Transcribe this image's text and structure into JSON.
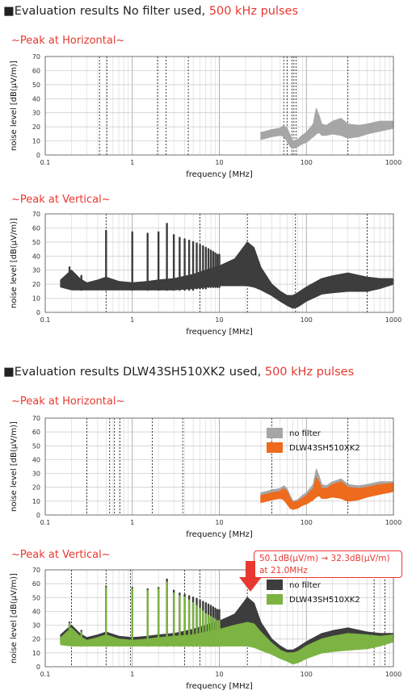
{
  "section1": {
    "prefix": "■Evaluation results   No filter used, ",
    "highlight": "500 kHz pulses"
  },
  "section2": {
    "prefix": "■Evaluation results   DLW43SH510XK2 used, ",
    "highlight": "500 kHz pulses"
  },
  "subtitles": {
    "c1": "~Peak at Horizontal~",
    "c2": "~Peak at Vertical~",
    "c3": "~Peak at Horizontal~",
    "c4": "~Peak at Vertical~"
  },
  "annotation": {
    "line1": "50.1dB(μV/m) → 32.3dB(μV/m)",
    "line2": "at 21.0MHz"
  },
  "colors": {
    "nofilter_gray": "#a6a6a6",
    "nofilter_dark": "#3d3d3d",
    "filter_orange": "#ee6a1c",
    "filter_green": "#7cb342",
    "accent_red": "#e8382f"
  },
  "chart_data": [
    {
      "id": "c1",
      "type": "line",
      "xscale": "log",
      "xlim": [
        0.1,
        1000
      ],
      "ylim": [
        0,
        70
      ],
      "xticks": [
        "0.1",
        "1",
        "10",
        "100",
        "1000"
      ],
      "yticks": [
        0,
        10,
        20,
        30,
        40,
        50,
        60,
        70
      ],
      "xlabel": "frequency [MHz]",
      "ylabel": "noise level [dB(μV/m)]",
      "marker_lines": [
        0.42,
        0.51,
        1.95,
        2.45,
        4.4,
        55,
        60,
        68,
        72,
        76,
        300
      ],
      "series": [
        {
          "color": "#a6a6a6",
          "band": true,
          "x": [
            30,
            35,
            40,
            50,
            55,
            60,
            65,
            70,
            80,
            90,
            100,
            120,
            130,
            140,
            150,
            170,
            200,
            250,
            300,
            400,
            500,
            700,
            1000
          ],
          "lo": [
            11,
            12,
            13,
            14,
            13,
            10,
            6,
            5,
            6,
            8,
            9,
            13,
            15,
            16,
            14,
            14,
            15,
            14,
            12,
            13,
            15,
            17,
            19
          ],
          "hi": [
            16,
            17,
            18,
            19,
            21,
            19,
            14,
            10,
            11,
            14,
            16,
            22,
            33,
            28,
            22,
            21,
            24,
            26,
            22,
            21,
            22,
            24,
            24
          ]
        }
      ]
    },
    {
      "id": "c2",
      "type": "line",
      "xscale": "log",
      "xlim": [
        0.1,
        1000
      ],
      "ylim": [
        0,
        70
      ],
      "xticks": [
        "0.1",
        "1",
        "10",
        "100",
        "1000"
      ],
      "yticks": [
        0,
        10,
        20,
        30,
        40,
        50,
        60,
        70
      ],
      "xlabel": "frequency [MHz]",
      "ylabel": "noise level [dB(μV/m)]",
      "marker_lines": [
        0.5,
        6,
        21,
        75,
        500
      ],
      "series": [
        {
          "color": "#3d3d3d",
          "band": true,
          "x": [
            0.15,
            0.2,
            0.25,
            0.3,
            0.4,
            0.5,
            0.7,
            1,
            1.5,
            2,
            3,
            5,
            7,
            10,
            15,
            21,
            25,
            30,
            40,
            50,
            60,
            70,
            80,
            100,
            150,
            200,
            300,
            500,
            700,
            1000
          ],
          "lo": [
            18,
            16,
            16,
            16,
            16,
            16,
            16,
            16,
            16,
            16,
            16,
            17,
            18,
            19,
            19,
            19,
            18,
            16,
            12,
            8,
            5,
            3,
            4,
            8,
            13,
            14,
            15,
            15,
            17,
            20
          ],
          "hi": [
            23,
            30,
            24,
            21,
            23,
            25,
            22,
            21,
            22,
            23,
            24,
            27,
            30,
            33,
            38,
            50,
            46,
            32,
            20,
            15,
            12,
            12,
            14,
            18,
            24,
            26,
            28,
            25,
            24,
            24
          ],
          "spikes_x": [
            0.19,
            0.26,
            0.5,
            1.0,
            1.5,
            2.0,
            2.5,
            3.0,
            3.5,
            4.0,
            4.5,
            5.0,
            5.5,
            6.0,
            6.5,
            7.0,
            7.5,
            8.0,
            8.5,
            9.0,
            9.5,
            10.0
          ],
          "spikes_y": [
            32,
            26,
            58,
            57,
            56,
            57,
            63,
            55,
            53,
            52,
            51,
            50,
            49,
            48,
            47,
            46,
            45,
            44,
            43,
            42,
            41,
            41
          ]
        }
      ]
    },
    {
      "id": "c3",
      "type": "line",
      "xscale": "log",
      "xlim": [
        0.1,
        1000
      ],
      "ylim": [
        0,
        70
      ],
      "xticks": [
        "0.1",
        "1",
        "10",
        "100",
        "1000"
      ],
      "yticks": [
        0,
        10,
        20,
        30,
        40,
        50,
        60,
        70
      ],
      "xlabel": "frequency [MHz]",
      "ylabel": "noise level [dB(μV/m)]",
      "marker_lines": [
        0.3,
        0.55,
        0.62,
        0.72,
        1.7,
        3.8,
        40,
        300
      ],
      "legend": [
        "no filter",
        "DLW43SH510XK2"
      ],
      "series": [
        {
          "name": "no filter",
          "color": "#a6a6a6",
          "band": true,
          "x": [
            30,
            35,
            40,
            50,
            55,
            60,
            65,
            70,
            80,
            90,
            100,
            120,
            130,
            140,
            150,
            170,
            200,
            250,
            300,
            400,
            500,
            700,
            1000
          ],
          "lo": [
            11,
            12,
            13,
            14,
            13,
            10,
            6,
            5,
            6,
            8,
            9,
            13,
            15,
            16,
            14,
            14,
            15,
            14,
            12,
            13,
            15,
            17,
            19
          ],
          "hi": [
            16,
            17,
            18,
            19,
            21,
            19,
            14,
            10,
            11,
            14,
            16,
            22,
            33,
            28,
            22,
            21,
            24,
            26,
            22,
            21,
            22,
            24,
            24
          ]
        },
        {
          "name": "DLW43SH510XK2",
          "color": "#ee6a1c",
          "band": true,
          "x": [
            30,
            35,
            40,
            50,
            55,
            60,
            65,
            70,
            80,
            90,
            100,
            120,
            130,
            140,
            150,
            170,
            200,
            250,
            300,
            400,
            500,
            700,
            1000
          ],
          "lo": [
            9,
            10,
            11,
            12,
            11,
            8,
            5,
            4,
            5,
            7,
            8,
            11,
            13,
            14,
            12,
            12,
            13,
            12,
            10,
            11,
            13,
            15,
            17
          ],
          "hi": [
            14,
            15,
            16,
            17,
            19,
            17,
            12,
            9,
            10,
            12,
            14,
            19,
            27,
            24,
            19,
            19,
            22,
            24,
            20,
            19,
            20,
            22,
            23
          ]
        }
      ]
    },
    {
      "id": "c4",
      "type": "line",
      "xscale": "log",
      "xlim": [
        0.1,
        1000
      ],
      "ylim": [
        0,
        70
      ],
      "xticks": [
        "0.1",
        "1",
        "10",
        "100",
        "1000"
      ],
      "yticks": [
        0,
        10,
        20,
        30,
        40,
        50,
        60,
        70
      ],
      "xlabel": "frequency [MHz]",
      "ylabel": "noise level [dB(μV/m)]",
      "marker_lines": [
        0.2,
        0.5,
        0.95,
        4,
        6,
        21,
        600,
        800
      ],
      "legend": [
        "no filter",
        "DLW43SH510XK2"
      ],
      "series": [
        {
          "name": "no filter",
          "color": "#3d3d3d",
          "band": true,
          "x": [
            0.15,
            0.2,
            0.25,
            0.3,
            0.4,
            0.5,
            0.7,
            1,
            1.5,
            2,
            3,
            5,
            7,
            10,
            15,
            21,
            25,
            30,
            40,
            50,
            60,
            70,
            80,
            100,
            150,
            200,
            300,
            500,
            700,
            1000
          ],
          "lo": [
            18,
            16,
            16,
            16,
            16,
            16,
            16,
            16,
            16,
            16,
            16,
            17,
            18,
            19,
            19,
            19,
            18,
            16,
            12,
            8,
            5,
            3,
            4,
            8,
            13,
            14,
            15,
            15,
            17,
            20
          ],
          "hi": [
            23,
            30,
            24,
            21,
            23,
            25,
            22,
            21,
            22,
            23,
            24,
            27,
            30,
            33,
            38,
            50,
            46,
            32,
            20,
            15,
            12,
            12,
            14,
            18,
            24,
            26,
            28,
            25,
            24,
            24
          ],
          "spikes_x": [
            0.19,
            0.26,
            0.5,
            1.0,
            1.5,
            2.0,
            2.5,
            3.0,
            3.5,
            4.0,
            4.5,
            5.0,
            5.5,
            6.0,
            6.5,
            7.0,
            7.5,
            8.0,
            8.5,
            9.0,
            9.5,
            10.0
          ],
          "spikes_y": [
            32,
            26,
            58,
            57,
            56,
            57,
            63,
            55,
            53,
            52,
            51,
            50,
            49,
            48,
            47,
            46,
            45,
            44,
            43,
            42,
            41,
            41
          ]
        },
        {
          "name": "DLW43SH510XK2",
          "color": "#7cb342",
          "band": true,
          "x": [
            0.15,
            0.2,
            0.25,
            0.3,
            0.4,
            0.5,
            0.7,
            1,
            1.5,
            2,
            3,
            5,
            7,
            10,
            15,
            21,
            25,
            30,
            40,
            50,
            60,
            70,
            80,
            100,
            150,
            200,
            300,
            500,
            700,
            1000
          ],
          "lo": [
            16,
            15,
            15,
            15,
            15,
            15,
            15,
            15,
            15,
            15,
            15,
            15,
            15,
            15,
            15,
            15,
            14,
            12,
            9,
            6,
            4,
            2,
            3,
            6,
            10,
            11,
            12,
            13,
            15,
            18
          ],
          "hi": [
            21,
            28,
            22,
            19,
            21,
            23,
            20,
            19,
            20,
            21,
            22,
            23,
            25,
            27,
            30,
            32,
            31,
            25,
            17,
            12,
            10,
            10,
            11,
            15,
            20,
            22,
            24,
            23,
            22,
            23
          ],
          "spikes_x": [
            0.19,
            0.26,
            0.5,
            1.0,
            1.5,
            2.0,
            2.5,
            3.0,
            3.5,
            4.0,
            4.5,
            5.0,
            5.5,
            6.0,
            6.5,
            7.0,
            7.5,
            8.0,
            8.5,
            9.0,
            9.5,
            10.0
          ],
          "spikes_y": [
            31,
            25,
            57,
            56,
            55,
            56,
            61,
            53,
            51,
            50,
            48,
            46,
            44,
            42,
            40,
            38,
            37,
            36,
            35,
            34,
            33,
            33
          ]
        }
      ]
    }
  ]
}
